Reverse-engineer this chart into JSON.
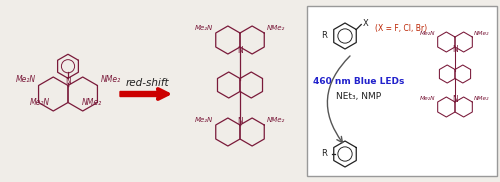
{
  "bg_color": "#f0ede8",
  "structure_color": "#7a1a3a",
  "text_color_black": "#222222",
  "arrow_color": "#cc0000",
  "blue_text": "#2222cc",
  "label_red_shift": "red-shift",
  "label_460nm": "460 nm Blue LEDs",
  "label_reagents": "NEt₃, NMP",
  "label_x": "(X = F, Cl, Br)"
}
